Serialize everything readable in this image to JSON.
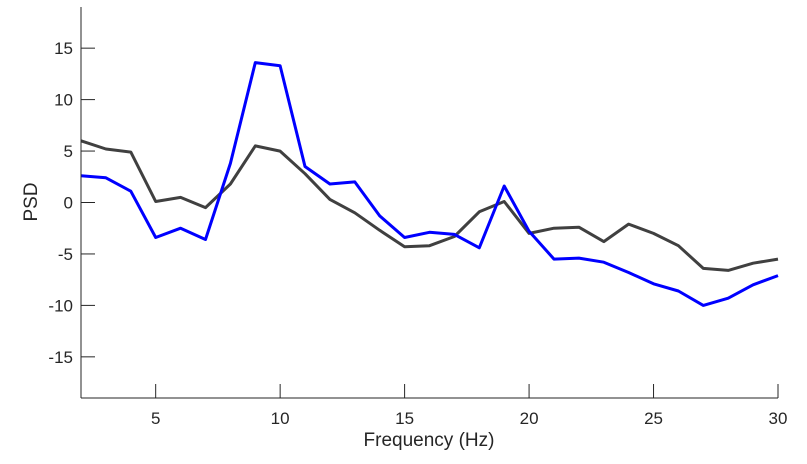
{
  "chart_data": {
    "type": "line",
    "title": "",
    "xlabel": "Frequency (Hz)",
    "ylabel": "PSD",
    "xlim": [
      2,
      30
    ],
    "ylim": [
      -19,
      19
    ],
    "xticks": [
      5,
      10,
      15,
      20,
      25,
      30
    ],
    "yticks": [
      -15,
      -10,
      -5,
      0,
      5,
      10,
      15
    ],
    "grid": false,
    "x": [
      2,
      3,
      4,
      5,
      6,
      7,
      8,
      9,
      10,
      11,
      12,
      13,
      14,
      15,
      16,
      17,
      18,
      19,
      20,
      21,
      22,
      23,
      24,
      25,
      26,
      27,
      28,
      29,
      30
    ],
    "series": [
      {
        "name": "series-dark",
        "color": "#404040",
        "values": [
          6.0,
          5.2,
          4.9,
          0.1,
          0.5,
          -0.5,
          1.8,
          5.5,
          5.0,
          2.8,
          0.3,
          -1.0,
          -2.7,
          -4.3,
          -4.2,
          -3.3,
          -0.9,
          0.1,
          -3.0,
          -2.5,
          -2.4,
          -3.8,
          -2.1,
          -3.0,
          -4.2,
          -6.4,
          -6.6,
          -5.9,
          -5.5
        ]
      },
      {
        "name": "series-blue",
        "color": "#0000ff",
        "values": [
          2.6,
          2.4,
          1.1,
          -3.4,
          -2.5,
          -3.6,
          3.8,
          13.6,
          13.3,
          3.5,
          1.8,
          2.0,
          -1.3,
          -3.4,
          -2.9,
          -3.1,
          -4.4,
          1.6,
          -2.8,
          -5.5,
          -5.4,
          -5.8,
          -6.8,
          -7.9,
          -8.6,
          -10.0,
          -9.3,
          -8.0,
          -7.1
        ]
      }
    ]
  }
}
